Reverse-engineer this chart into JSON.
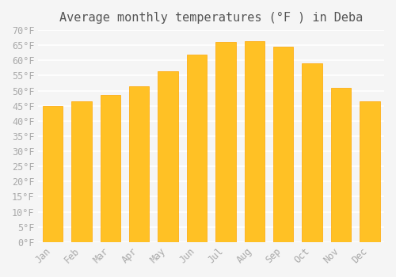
{
  "title": "Average monthly temperatures (°F ) in Deba",
  "months": [
    "Jan",
    "Feb",
    "Mar",
    "Apr",
    "May",
    "Jun",
    "Jul",
    "Aug",
    "Sep",
    "Oct",
    "Nov",
    "Dec"
  ],
  "values": [
    45,
    46.5,
    48.5,
    51.5,
    56.5,
    62,
    66,
    66.5,
    64.5,
    59,
    51,
    46.5
  ],
  "bar_color": "#FFC125",
  "bar_edge_color": "#FFA500",
  "background_color": "#F5F5F5",
  "grid_color": "#FFFFFF",
  "tick_label_color": "#AAAAAA",
  "title_color": "#555555",
  "ylim": [
    0,
    70
  ],
  "yticks": [
    0,
    5,
    10,
    15,
    20,
    25,
    30,
    35,
    40,
    45,
    50,
    55,
    60,
    65,
    70
  ],
  "title_fontsize": 11,
  "tick_fontsize": 8.5
}
